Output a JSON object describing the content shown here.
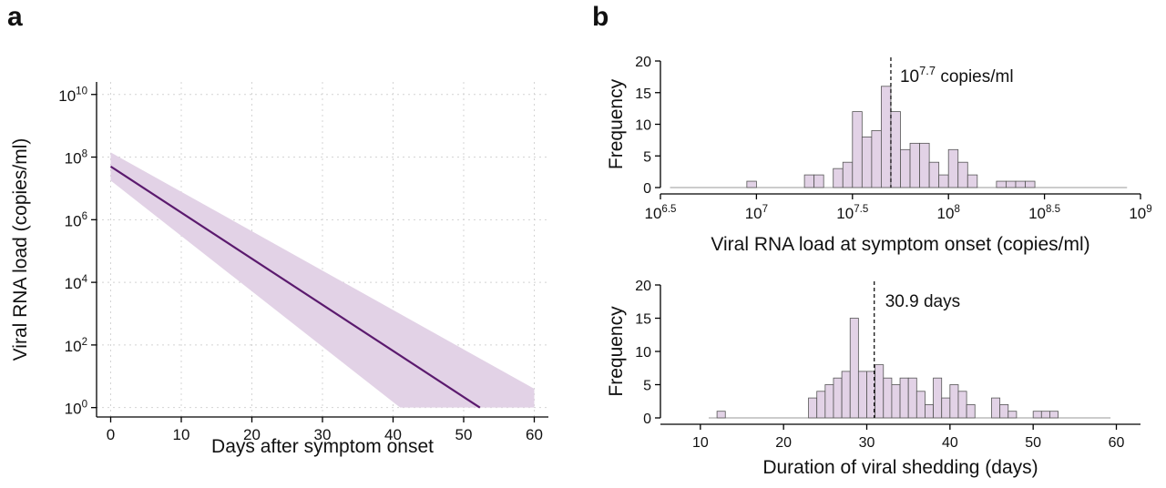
{
  "panels": {
    "a": "a",
    "b": "b"
  },
  "chart_data": [
    {
      "type": "line",
      "panel": "a",
      "xlabel": "Days after symptom onset",
      "ylabel": "Viral RNA load (copies/ml)",
      "xlim": [
        -2,
        62
      ],
      "xticks": [
        0,
        10,
        20,
        30,
        40,
        50,
        60
      ],
      "yscale": "log10",
      "ylim_log10": [
        -0.3,
        10.4
      ],
      "yticks": [
        {
          "exp": 0,
          "base": "10",
          "sup": "0"
        },
        {
          "exp": 2,
          "base": "10",
          "sup": "2"
        },
        {
          "exp": 4,
          "base": "10",
          "sup": "4"
        },
        {
          "exp": 6,
          "base": "10",
          "sup": "6"
        },
        {
          "exp": 8,
          "base": "10",
          "sup": "8"
        },
        {
          "exp": 10,
          "base": "10",
          "sup": "10"
        }
      ],
      "grid": true,
      "line_color": "#5b1a6e",
      "band_color": "#e2d2e6",
      "line": {
        "x": [
          0,
          52.3
        ],
        "log10_y": [
          7.7,
          0
        ]
      },
      "band": {
        "upper": {
          "x": [
            0,
            60
          ],
          "log10_y": [
            8.15,
            0.6
          ]
        },
        "lower": {
          "x": [
            0,
            41,
            60
          ],
          "log10_y": [
            7.25,
            0,
            0
          ]
        }
      }
    },
    {
      "type": "bar",
      "panel": "b-top",
      "xlabel": "Viral RNA load at symptom onset (copies/ml)",
      "ylabel": "Frequency",
      "xscale": "log10",
      "xlim_log10": [
        6.5,
        9.0
      ],
      "xticks": [
        {
          "exp": 6.5,
          "base": "10",
          "sup": "6.5"
        },
        {
          "exp": 7,
          "base": "10",
          "sup": "7"
        },
        {
          "exp": 7.5,
          "base": "10",
          "sup": "7.5"
        },
        {
          "exp": 8,
          "base": "10",
          "sup": "8"
        },
        {
          "exp": 8.5,
          "base": "10",
          "sup": "8.5"
        },
        {
          "exp": 9,
          "base": "10",
          "sup": "9"
        }
      ],
      "ylim": [
        0,
        20
      ],
      "yticks": [
        0,
        5,
        10,
        15,
        20
      ],
      "bin_width_log10": 0.05,
      "bin_starts_log10": [
        6.95,
        7.25,
        7.3,
        7.4,
        7.45,
        7.5,
        7.55,
        7.6,
        7.65,
        7.7,
        7.75,
        7.8,
        7.85,
        7.9,
        7.95,
        8.0,
        8.05,
        8.1,
        8.25,
        8.3,
        8.35,
        8.4
      ],
      "counts": [
        1,
        2,
        2,
        3,
        4,
        12,
        8,
        9,
        16,
        12,
        6,
        7,
        7,
        4,
        2,
        6,
        4,
        2,
        1,
        1,
        1,
        1
      ],
      "baseline_range_log10": [
        6.55,
        8.93
      ],
      "median_log10": 7.7,
      "annotation": {
        "base": "10",
        "sup": "7.7",
        "suffix": " copies/ml"
      }
    },
    {
      "type": "bar",
      "panel": "b-bottom",
      "xlabel": "Duration of viral shedding (days)",
      "ylabel": "Frequency",
      "xlim": [
        5.2,
        62.9
      ],
      "xticks": [
        10,
        20,
        30,
        40,
        50,
        60
      ],
      "ylim": [
        0,
        20
      ],
      "yticks": [
        0,
        5,
        10,
        15,
        20
      ],
      "bin_width": 1,
      "bin_starts": [
        12,
        23,
        24,
        25,
        26,
        27,
        28,
        29,
        30,
        31,
        32,
        33,
        34,
        35,
        36,
        37,
        38,
        39,
        40,
        41,
        42,
        45,
        46,
        47,
        50,
        51,
        52
      ],
      "counts": [
        1,
        3,
        4,
        5,
        6,
        7,
        15,
        7,
        7,
        8,
        6,
        5,
        6,
        6,
        4,
        2,
        6,
        3,
        5,
        4,
        2,
        3,
        2,
        1,
        1,
        1,
        1
      ],
      "baseline_range": [
        11,
        59.3
      ],
      "median": 30.9,
      "annotation": {
        "text": "30.9 days"
      }
    }
  ]
}
